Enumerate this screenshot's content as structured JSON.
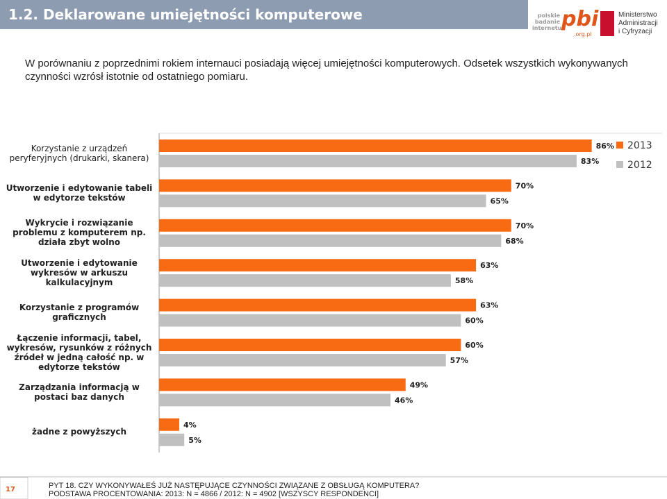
{
  "header": {
    "title": "1.2. Deklarowane umiejętności komputerowe",
    "logo_pbi": [
      "polskie",
      "badanie",
      "internetu",
      "pbi",
      ".org.pl"
    ],
    "logo_ministry": [
      "Ministerstwo",
      "Administracji",
      "i Cyfryzacji"
    ]
  },
  "intro": "W porównaniu z poprzednimi rokiem internauci posiadają więcej umiejętności komputerowych. Odsetek wszystkich wykonywanych czynności wzrósł istotnie od ostatniego pomiaru.",
  "chart_data": {
    "type": "bar",
    "orientation": "horizontal",
    "categories": [
      "Korzystanie z urządzeń peryferyjnych (drukarki, skanera)",
      "Utworzenie i edytowanie tabeli w edytorze tekstów",
      "Wykrycie i rozwiązanie problemu z komputerem np. działa zbyt wolno",
      "Utworzenie i edytowanie wykresów w arkuszu kalkulacyjnym",
      "Korzystanie z programów graficznych",
      "Łączenie informacji, tabel, wykresów, rysunków z różnych źródeł w jedną całość np. w edytorze tekstów",
      "Zarządzania informacją w postaci baz danych",
      "żadne z powyższych"
    ],
    "series": [
      {
        "name": "2013",
        "color": "#f96b12",
        "values": [
          86,
          70,
          70,
          63,
          63,
          60,
          49,
          4
        ],
        "value_labels": [
          "86%",
          "70%",
          "70%",
          "63%",
          "63%",
          "60%",
          "49%",
          "4%"
        ]
      },
      {
        "name": "2012",
        "color": "#c0c0c0",
        "values": [
          83,
          65,
          68,
          58,
          60,
          57,
          46,
          5
        ],
        "value_labels": [
          "83%",
          "65%",
          "68%",
          "58%",
          "60%",
          "57%",
          "46%",
          "5%"
        ]
      }
    ],
    "xlim": [
      0,
      100
    ],
    "legend": "top-right"
  },
  "footer": {
    "page": "17",
    "source": [
      "PYT 18. CZY WYKONYWAŁEŚ JUŻ NASTĘPUJĄCE CZYNNOŚCI ZWIĄZANE Z OBSŁUGĄ KOMPUTERA?",
      "PODSTAWA PROCENTOWANIA: 2013: N = 4866 / 2012: N = 4902 [WSZYSCY RESPONDENCI]"
    ]
  }
}
